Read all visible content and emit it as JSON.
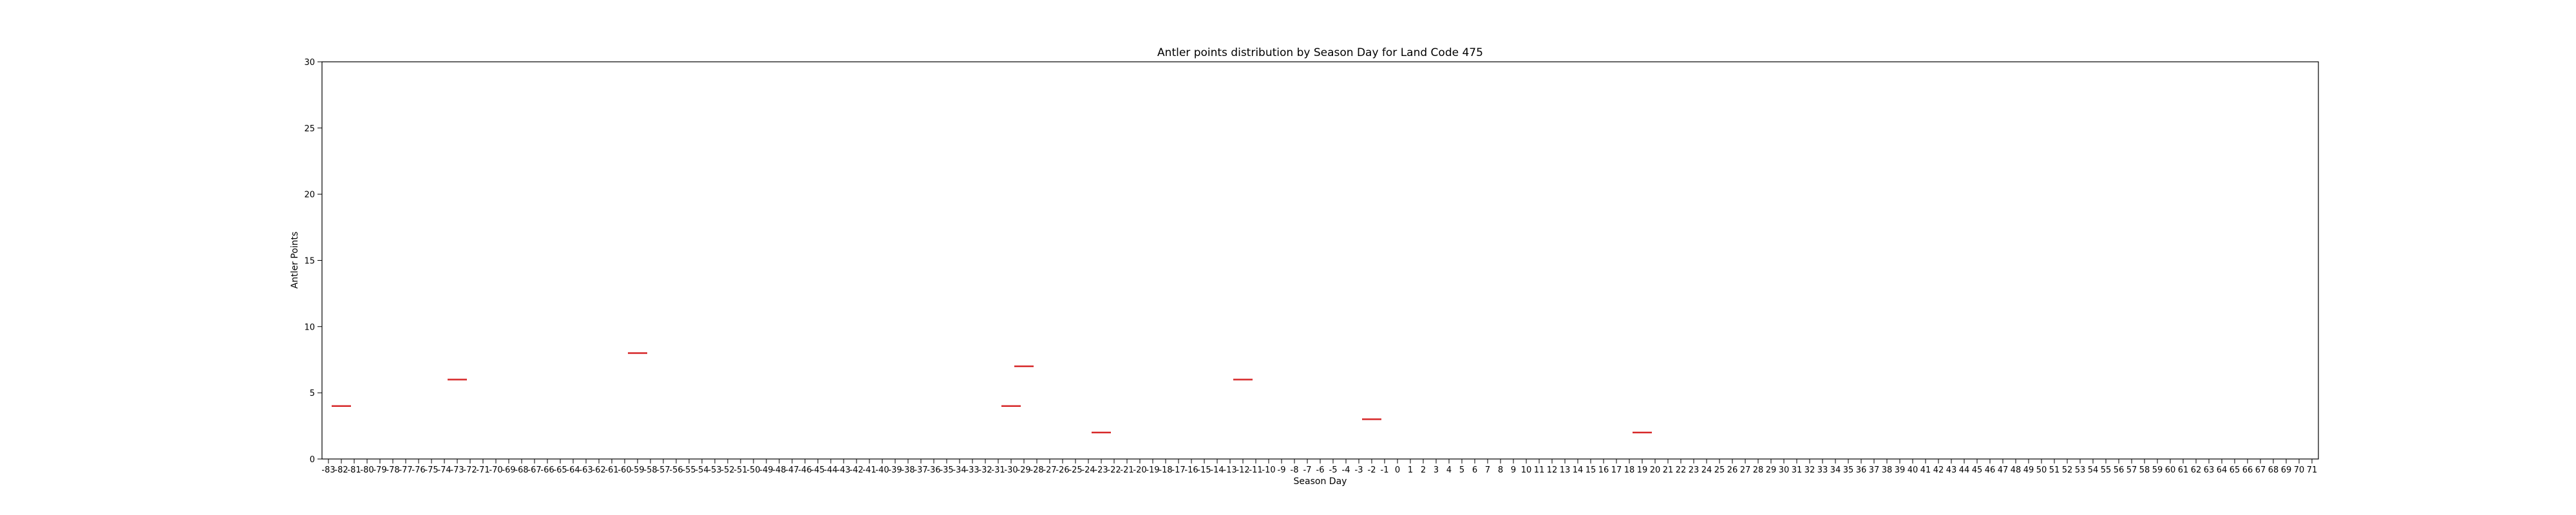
{
  "chart_data": {
    "type": "box",
    "title": "Antler points distribution by Season Day for Land Code 475",
    "xlabel": "Season Day",
    "ylabel": "Antler Points",
    "ylim": [
      0,
      30
    ],
    "yticks": [
      0,
      5,
      10,
      15,
      20,
      25,
      30
    ],
    "x_range": [
      -83,
      71
    ],
    "grid": false,
    "median_color": "#d62728",
    "points": [
      {
        "day": -82,
        "value": 4
      },
      {
        "day": -73,
        "value": 6
      },
      {
        "day": -59,
        "value": 8
      },
      {
        "day": -30,
        "value": 4
      },
      {
        "day": -29,
        "value": 7
      },
      {
        "day": -23,
        "value": 2
      },
      {
        "day": -12,
        "value": 6
      },
      {
        "day": -2,
        "value": 3
      },
      {
        "day": 19,
        "value": 2
      }
    ]
  }
}
